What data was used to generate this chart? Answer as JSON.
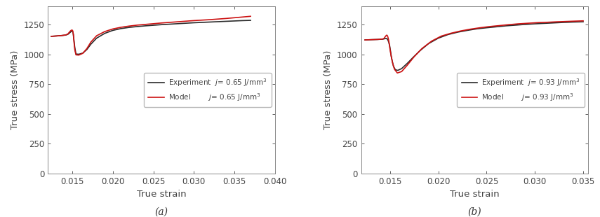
{
  "panel_a": {
    "title": "(a)",
    "xlabel": "True strain",
    "ylabel": "True stress (MPa)",
    "xlim": [
      0.012,
      0.04
    ],
    "ylim": [
      0,
      1400
    ],
    "xticks": [
      0.015,
      0.02,
      0.025,
      0.03,
      0.035,
      0.04
    ],
    "yticks": [
      0,
      250,
      500,
      750,
      1000,
      1250
    ],
    "exp_label": "Experiment  $j$= 0.65 J/mm$^3$",
    "model_label": "Model        $j$= 0.65 J/mm$^3$",
    "exp_color": "#2a2a2a",
    "model_color": "#cc1111",
    "exp_x": [
      0.0124,
      0.013,
      0.0137,
      0.0142,
      0.01445,
      0.01455,
      0.01465,
      0.01475,
      0.01485,
      0.01495,
      0.01503,
      0.01508,
      0.01513,
      0.0152,
      0.0153,
      0.01545,
      0.0158,
      0.0163,
      0.0168,
      0.0173,
      0.018,
      0.019,
      0.02,
      0.021,
      0.022,
      0.023,
      0.024,
      0.025,
      0.026,
      0.027,
      0.028,
      0.029,
      0.03,
      0.031,
      0.032,
      0.033,
      0.034,
      0.035,
      0.036,
      0.037
    ],
    "exp_y": [
      1150,
      1153,
      1157,
      1161,
      1167,
      1172,
      1178,
      1184,
      1190,
      1194,
      1192,
      1183,
      1165,
      1120,
      1060,
      1002,
      1000,
      1010,
      1040,
      1085,
      1135,
      1175,
      1200,
      1215,
      1225,
      1232,
      1238,
      1243,
      1248,
      1252,
      1256,
      1260,
      1264,
      1267,
      1270,
      1273,
      1276,
      1279,
      1282,
      1284
    ],
    "model_x": [
      0.0124,
      0.013,
      0.0137,
      0.0142,
      0.01445,
      0.01455,
      0.01465,
      0.01475,
      0.01485,
      0.01495,
      0.01503,
      0.01508,
      0.01513,
      0.0152,
      0.0153,
      0.01545,
      0.0158,
      0.0163,
      0.0168,
      0.0173,
      0.018,
      0.019,
      0.02,
      0.021,
      0.022,
      0.023,
      0.024,
      0.025,
      0.026,
      0.027,
      0.028,
      0.029,
      0.03,
      0.031,
      0.032,
      0.033,
      0.034,
      0.035,
      0.036,
      0.037
    ],
    "model_y": [
      1150,
      1153,
      1157,
      1162,
      1170,
      1178,
      1186,
      1194,
      1200,
      1203,
      1200,
      1188,
      1165,
      1110,
      1040,
      995,
      993,
      1008,
      1048,
      1103,
      1155,
      1190,
      1212,
      1226,
      1236,
      1244,
      1250,
      1256,
      1262,
      1267,
      1272,
      1277,
      1282,
      1286,
      1290,
      1295,
      1300,
      1306,
      1312,
      1318
    ]
  },
  "panel_b": {
    "title": "(b)",
    "xlabel": "True strain",
    "ylabel": "True stress (MPa)",
    "xlim": [
      0.012,
      0.0355
    ],
    "ylim": [
      0,
      1400
    ],
    "xticks": [
      0.015,
      0.02,
      0.025,
      0.03,
      0.035
    ],
    "yticks": [
      0,
      250,
      500,
      750,
      1000,
      1250
    ],
    "exp_label": "Experiment  $j$= 0.93 J/mm$^3$",
    "model_label": "Model        $j$= 0.93 J/mm$^3$",
    "exp_color": "#2a2a2a",
    "model_color": "#cc1111",
    "exp_x": [
      0.0124,
      0.013,
      0.0137,
      0.0142,
      0.01435,
      0.01442,
      0.01448,
      0.01455,
      0.01462,
      0.0147,
      0.01478,
      0.01487,
      0.01496,
      0.01504,
      0.01512,
      0.01522,
      0.01535,
      0.01555,
      0.0158,
      0.0162,
      0.0168,
      0.0174,
      0.0181,
      0.019,
      0.02,
      0.021,
      0.022,
      0.023,
      0.024,
      0.025,
      0.026,
      0.027,
      0.028,
      0.029,
      0.03,
      0.031,
      0.032,
      0.033,
      0.034,
      0.035
    ],
    "exp_y": [
      1120,
      1122,
      1124,
      1126,
      1128,
      1130,
      1132,
      1133,
      1132,
      1128,
      1118,
      1100,
      1070,
      1030,
      985,
      945,
      900,
      870,
      865,
      880,
      925,
      975,
      1030,
      1090,
      1135,
      1165,
      1185,
      1200,
      1213,
      1222,
      1230,
      1238,
      1244,
      1250,
      1255,
      1259,
      1263,
      1267,
      1270,
      1272
    ],
    "model_x": [
      0.0124,
      0.013,
      0.0137,
      0.0142,
      0.01435,
      0.01442,
      0.01448,
      0.01455,
      0.0146,
      0.01465,
      0.0147,
      0.01476,
      0.01483,
      0.0149,
      0.01498,
      0.0151,
      0.01525,
      0.01545,
      0.01575,
      0.0162,
      0.0168,
      0.0175,
      0.0183,
      0.0193,
      0.0203,
      0.0213,
      0.0223,
      0.0233,
      0.0243,
      0.0253,
      0.0263,
      0.0273,
      0.0283,
      0.0293,
      0.0303,
      0.0313,
      0.0323,
      0.0333,
      0.0343,
      0.035
    ],
    "model_y": [
      1120,
      1122,
      1124,
      1127,
      1132,
      1138,
      1145,
      1152,
      1157,
      1160,
      1158,
      1148,
      1127,
      1095,
      1048,
      990,
      930,
      875,
      843,
      855,
      910,
      980,
      1048,
      1110,
      1152,
      1176,
      1195,
      1210,
      1222,
      1232,
      1240,
      1248,
      1255,
      1260,
      1265,
      1268,
      1272,
      1275,
      1278,
      1280
    ]
  },
  "background_color": "#ffffff",
  "spine_color": "#888888",
  "tick_color": "#444444",
  "font_size": 8.5,
  "label_font_size": 9.5,
  "legend_font_size": 7.5,
  "line_width": 1.2
}
